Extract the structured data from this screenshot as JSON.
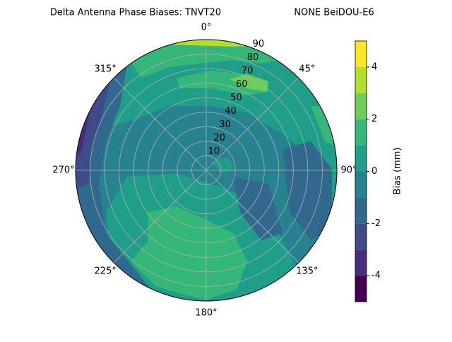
{
  "chart_data": {
    "type": "polar_contour",
    "title": "Delta Antenna Phase Biases: TNVT20",
    "subtitle": "NONE BeiDOU-E6",
    "rlim": [
      0,
      90
    ],
    "rticks": [
      10,
      20,
      30,
      40,
      50,
      60,
      70,
      80,
      90
    ],
    "thetaticks": [
      {
        "value": 0,
        "label": "0°"
      },
      {
        "value": 45,
        "label": "45°"
      },
      {
        "value": 90,
        "label": "90°"
      },
      {
        "value": 135,
        "label": "135°"
      },
      {
        "value": 180,
        "label": "180°"
      },
      {
        "value": 225,
        "label": "225°"
      },
      {
        "value": 270,
        "label": "270°"
      },
      {
        "value": 315,
        "label": "315°"
      }
    ],
    "grid": true,
    "levels": [
      -5,
      -4,
      -3,
      -2,
      -1,
      0,
      1,
      2,
      3,
      4,
      5
    ],
    "colors": [
      "#440154",
      "#472d7b",
      "#3e4a89",
      "#31688e",
      "#26828e",
      "#1f9e89",
      "#35b779",
      "#6ece58",
      "#b5de2b",
      "#fde725"
    ],
    "colorbar_label": "Bias (mm)",
    "colorbar_ticks": [
      -4,
      -2,
      0,
      2,
      4
    ]
  }
}
